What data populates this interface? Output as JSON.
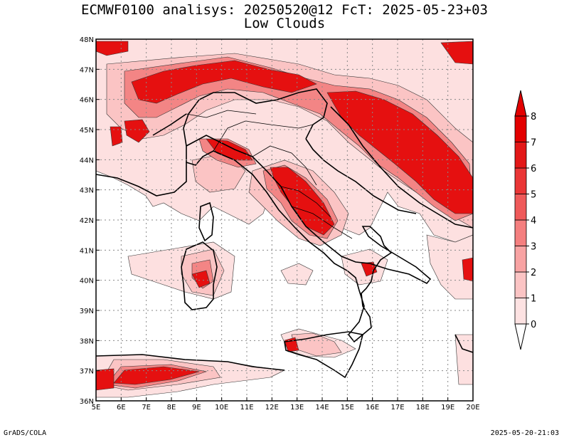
{
  "title_line1": "ECMWF0100 analisys: 20250520@12 FcT: 2025-05-23+03",
  "title_line2": "Low Clouds",
  "footer_left": "GrADS/COLA",
  "footer_right": "2025-05-20-21:03",
  "map": {
    "lon_range": [
      5,
      20
    ],
    "lat_range": [
      36,
      48
    ],
    "lon_labels": [
      "5E",
      "6E",
      "7E",
      "8E",
      "9E",
      "10E",
      "11E",
      "12E",
      "13E",
      "14E",
      "15E",
      "16E",
      "17E",
      "18E",
      "19E",
      "20E"
    ],
    "lat_labels": [
      "36N",
      "37N",
      "38N",
      "39N",
      "40N",
      "41N",
      "42N",
      "43N",
      "44N",
      "45N",
      "46N",
      "47N",
      "48N"
    ],
    "grid": "dotted"
  },
  "colorbar": {
    "levels": [
      "0",
      "1",
      "2",
      "3",
      "4",
      "5",
      "6",
      "7",
      "8"
    ],
    "colors": [
      "#ffffff",
      "#fde2e2",
      "#fbc4c4",
      "#f8a3a3",
      "#f47f7f",
      "#ef5a5a",
      "#ea3636",
      "#e31818",
      "#e30000"
    ]
  }
}
